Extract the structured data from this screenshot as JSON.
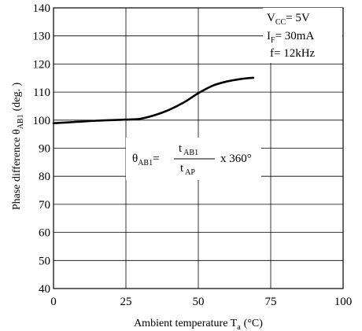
{
  "chart_data": {
    "type": "line",
    "xlabel": "Ambient temperature T",
    "xlabel_subscript": "a",
    "xlabel_unit": "(°C)",
    "ylabel": "Phase difference θ",
    "ylabel_subscript": "AB1",
    "ylabel_unit": "(deg. )",
    "xlim": [
      0,
      100
    ],
    "ylim": [
      40,
      140
    ],
    "x_ticks": [
      "0",
      "25",
      "50",
      "75",
      "100"
    ],
    "y_ticks": [
      "40",
      "50",
      "60",
      "70",
      "80",
      "90",
      "100",
      "110",
      "120",
      "130",
      "140"
    ],
    "grid": true,
    "series": [
      {
        "x": [
          0,
          5,
          10,
          15,
          20,
          25,
          30,
          35,
          40,
          45,
          50,
          55,
          60,
          65,
          69
        ],
        "y": [
          98.9,
          99.2,
          99.5,
          99.8,
          100.0,
          100.2,
          100.5,
          101.8,
          103.7,
          106.3,
          109.6,
          112.3,
          113.8,
          114.7,
          115.1
        ]
      }
    ]
  },
  "conditions": [
    {
      "main": "V",
      "sub": "CC",
      "rest": "= 5V"
    },
    {
      "main": "I",
      "sub": "F",
      "rest": "= 30mA"
    },
    {
      "main": "f= 12kHz",
      "sub": "",
      "rest": ""
    }
  ],
  "formula": {
    "lhs_main": "θ",
    "lhs_sub": "AB1",
    "equals": "=",
    "num_main": "t",
    "num_sub": "AB1",
    "den_main": "t",
    "den_sub": "AP",
    "tail": "x 360°"
  }
}
